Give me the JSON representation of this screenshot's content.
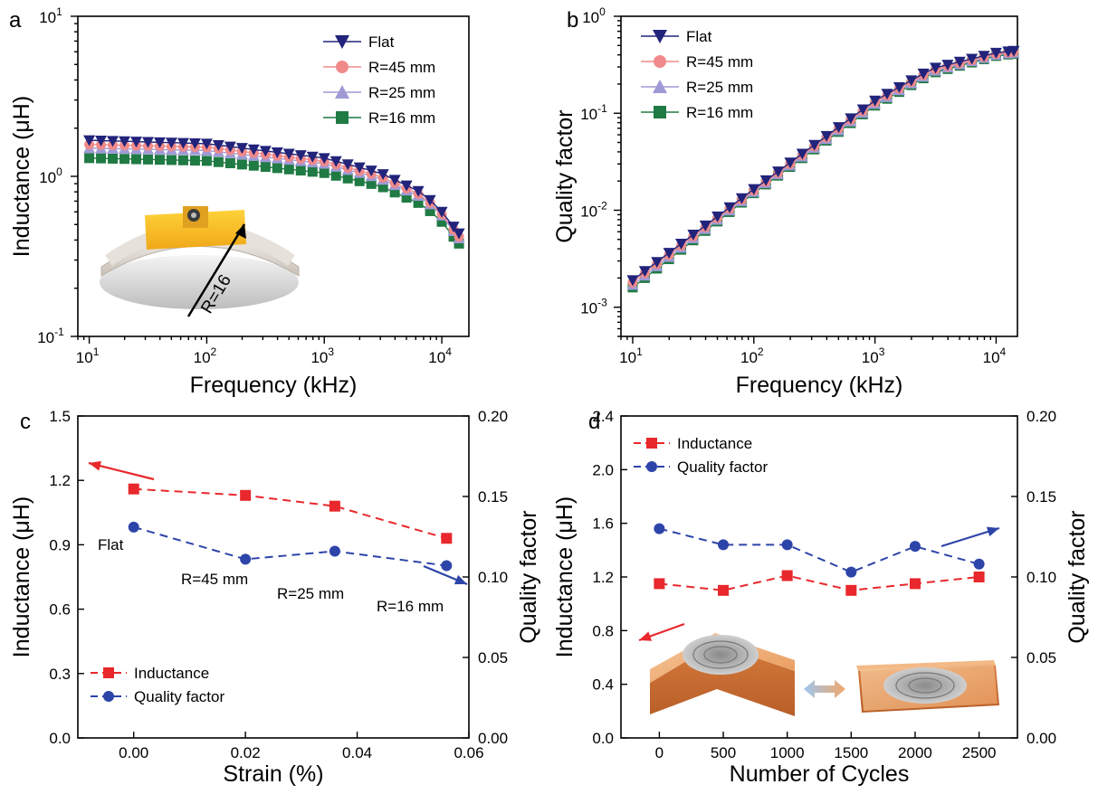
{
  "chart_data": [
    {
      "panel": "a",
      "type": "scatter",
      "xlabel": "Frequency (kHz)",
      "ylabel": "Inductance (μH)",
      "xscale": "log",
      "yscale": "log",
      "xlim": [
        8,
        17000
      ],
      "ylim": [
        0.1,
        10
      ],
      "xticks": [
        {
          "v": 10,
          "base": "10",
          "exp": "1"
        },
        {
          "v": 100,
          "base": "10",
          "exp": "2"
        },
        {
          "v": 1000,
          "base": "10",
          "exp": "3"
        },
        {
          "v": 10000,
          "base": "10",
          "exp": "4"
        }
      ],
      "yticks": [
        {
          "v": 0.1,
          "base": "10",
          "exp": "-1"
        },
        {
          "v": 1,
          "base": "10",
          "exp": "0"
        },
        {
          "v": 10,
          "base": "10",
          "exp": "1"
        }
      ],
      "legend_position": "top-right",
      "inset_annotation": "R=16",
      "series": [
        {
          "name": "Flat",
          "marker": "triangle-down",
          "color": "#22237a",
          "x": [
            10,
            100,
            1000,
            3000,
            7000,
            10000,
            14000
          ],
          "y": [
            1.68,
            1.6,
            1.3,
            1.05,
            0.78,
            0.6,
            0.44
          ]
        },
        {
          "name": "R=45 mm",
          "marker": "circle",
          "color": "#f08a8a",
          "x": [
            10,
            100,
            1000,
            3000,
            7000,
            10000,
            14000
          ],
          "y": [
            1.58,
            1.52,
            1.24,
            1.0,
            0.75,
            0.58,
            0.42
          ]
        },
        {
          "name": "R=25 mm",
          "marker": "triangle-up",
          "color": "#9f9ad6",
          "x": [
            10,
            100,
            1000,
            3000,
            7000,
            10000,
            14000
          ],
          "y": [
            1.5,
            1.45,
            1.2,
            0.97,
            0.73,
            0.57,
            0.41
          ]
        },
        {
          "name": "R=16 mm",
          "marker": "square",
          "color": "#1f7a43",
          "x": [
            10,
            100,
            1000,
            3000,
            7000,
            10000,
            14000
          ],
          "y": [
            1.3,
            1.25,
            1.05,
            0.87,
            0.66,
            0.52,
            0.38
          ]
        }
      ]
    },
    {
      "panel": "b",
      "type": "scatter",
      "xlabel": "Frequency (kHz)",
      "ylabel": "Quality factor",
      "xscale": "log",
      "yscale": "log",
      "xlim": [
        8,
        15000
      ],
      "ylim": [
        0.0005,
        1
      ],
      "xticks": [
        {
          "v": 10,
          "base": "10",
          "exp": "1"
        },
        {
          "v": 100,
          "base": "10",
          "exp": "2"
        },
        {
          "v": 1000,
          "base": "10",
          "exp": "3"
        },
        {
          "v": 10000,
          "base": "10",
          "exp": "4"
        }
      ],
      "yticks": [
        {
          "v": 0.001,
          "base": "10",
          "exp": "-3"
        },
        {
          "v": 0.01,
          "base": "10",
          "exp": "-2"
        },
        {
          "v": 0.1,
          "base": "10",
          "exp": "-1"
        },
        {
          "v": 1,
          "base": "10",
          "exp": "0"
        }
      ],
      "legend_position": "top-left",
      "series": [
        {
          "name": "Flat",
          "marker": "triangle-down",
          "color": "#22237a",
          "x": [
            10,
            100,
            1000,
            3000,
            10000,
            14000
          ],
          "y": [
            0.0019,
            0.0165,
            0.135,
            0.29,
            0.42,
            0.44
          ]
        },
        {
          "name": "R=45 mm",
          "marker": "circle",
          "color": "#f08a8a",
          "x": [
            10,
            100,
            1000,
            3000,
            10000,
            14000
          ],
          "y": [
            0.0018,
            0.016,
            0.13,
            0.28,
            0.41,
            0.43
          ]
        },
        {
          "name": "R=25 mm",
          "marker": "triangle-up",
          "color": "#9f9ad6",
          "x": [
            10,
            100,
            1000,
            3000,
            10000,
            14000
          ],
          "y": [
            0.0017,
            0.0155,
            0.125,
            0.27,
            0.4,
            0.42
          ]
        },
        {
          "name": "R=16 mm",
          "marker": "square",
          "color": "#1f7a43",
          "x": [
            10,
            100,
            1000,
            3000,
            10000,
            14000
          ],
          "y": [
            0.0016,
            0.015,
            0.12,
            0.26,
            0.39,
            0.41
          ]
        }
      ]
    },
    {
      "panel": "c",
      "type": "line",
      "xlabel": "Strain (%)",
      "ylabel_left": "Inductance (μH)",
      "ylabel_right": "Quality factor",
      "xlim": [
        -0.01,
        0.06
      ],
      "ylim_left": [
        0,
        1.5
      ],
      "ylim_right": [
        0,
        0.2
      ],
      "xticks": [
        "0.00",
        "0.02",
        "0.04",
        "0.06"
      ],
      "yticks_left": [
        "0.0",
        "0.3",
        "0.6",
        "0.9",
        "1.2",
        "1.5"
      ],
      "yticks_right": [
        "0.00",
        "0.05",
        "0.10",
        "0.15",
        "0.20"
      ],
      "legend_position": "bottom-left",
      "annotations": [
        "Flat",
        "R=45 mm",
        "R=25 mm",
        "R=16 mm"
      ],
      "series": [
        {
          "name": "Inductance",
          "axis": "left",
          "marker": "square",
          "color": "#e8282c",
          "x": [
            0,
            0.02,
            0.036,
            0.056
          ],
          "y": [
            1.16,
            1.13,
            1.08,
            0.93
          ]
        },
        {
          "name": "Quality factor",
          "axis": "right",
          "marker": "circle",
          "color": "#2d44a8",
          "x": [
            0,
            0.02,
            0.036,
            0.056
          ],
          "y": [
            0.131,
            0.111,
            0.116,
            0.107
          ]
        }
      ]
    },
    {
      "panel": "d",
      "type": "line",
      "xlabel": "Number of Cycles",
      "ylabel_left": "Inductance (μH)",
      "ylabel_right": "Quality factor",
      "xlim": [
        -300,
        2800
      ],
      "ylim_left": [
        0,
        2.4
      ],
      "ylim_right": [
        0,
        0.2
      ],
      "xticks": [
        "0",
        "500",
        "1000",
        "1500",
        "2000",
        "2500"
      ],
      "yticks_left": [
        "0.0",
        "0.4",
        "0.8",
        "1.2",
        "1.6",
        "2.0",
        "2.4"
      ],
      "yticks_right": [
        "0.00",
        "0.05",
        "0.10",
        "0.15",
        "0.20"
      ],
      "legend_position": "top-left",
      "series": [
        {
          "name": "Inductance",
          "axis": "left",
          "marker": "square",
          "color": "#e8282c",
          "x": [
            0,
            500,
            1000,
            1500,
            2000,
            2500
          ],
          "y": [
            1.15,
            1.1,
            1.21,
            1.1,
            1.15,
            1.2
          ]
        },
        {
          "name": "Quality factor",
          "axis": "right",
          "marker": "circle",
          "color": "#2d44a8",
          "x": [
            0,
            500,
            1000,
            1500,
            2000,
            2500
          ],
          "y": [
            0.13,
            0.12,
            0.12,
            0.103,
            0.119,
            0.108
          ]
        }
      ]
    }
  ]
}
